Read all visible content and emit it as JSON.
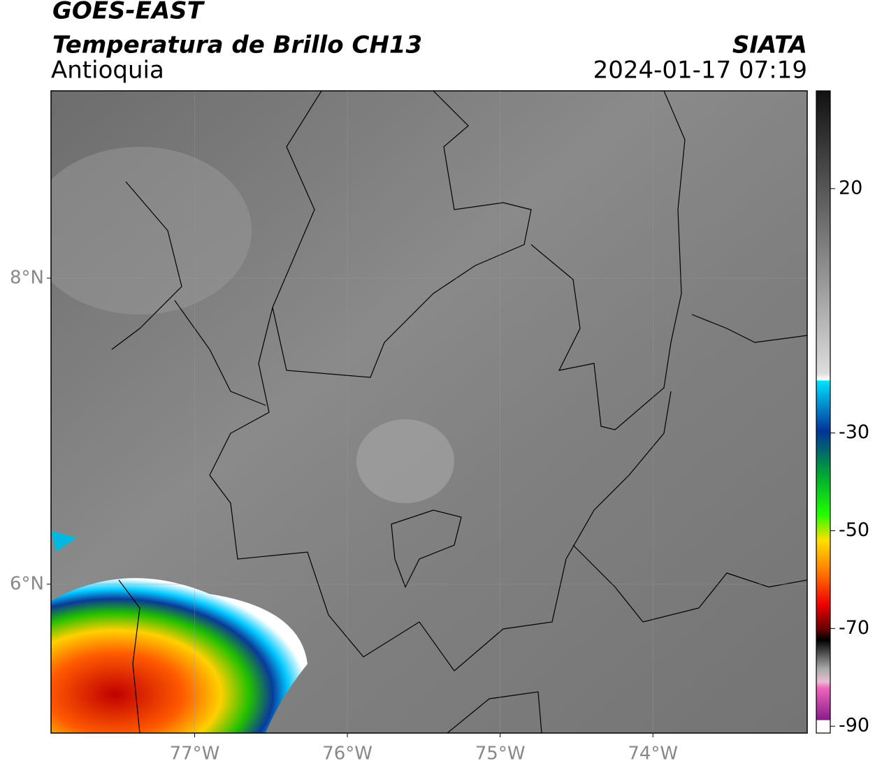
{
  "header": {
    "title": "GOES-EAST",
    "subtitle": "Temperatura de Brillo CH13",
    "region": "Antioquia",
    "source": "SIATA",
    "timestamp": "2024-01-17 07:19"
  },
  "map": {
    "latlim": [
      5.027,
      9.224
    ],
    "lonlim": [
      -77.94,
      -72.99
    ],
    "lat_ticks": [
      {
        "value": 8,
        "label": "8°N"
      },
      {
        "value": 6,
        "label": "6°N"
      }
    ],
    "lon_ticks": [
      {
        "value": -77,
        "label": "77°W"
      },
      {
        "value": -76,
        "label": "76°W"
      },
      {
        "value": -75,
        "label": "75°W"
      },
      {
        "value": -74,
        "label": "74°W"
      }
    ]
  },
  "colorbar": {
    "lim": [
      -91.4,
      40
    ],
    "ticks": [
      20,
      -30,
      -50,
      -70,
      -90
    ]
  }
}
